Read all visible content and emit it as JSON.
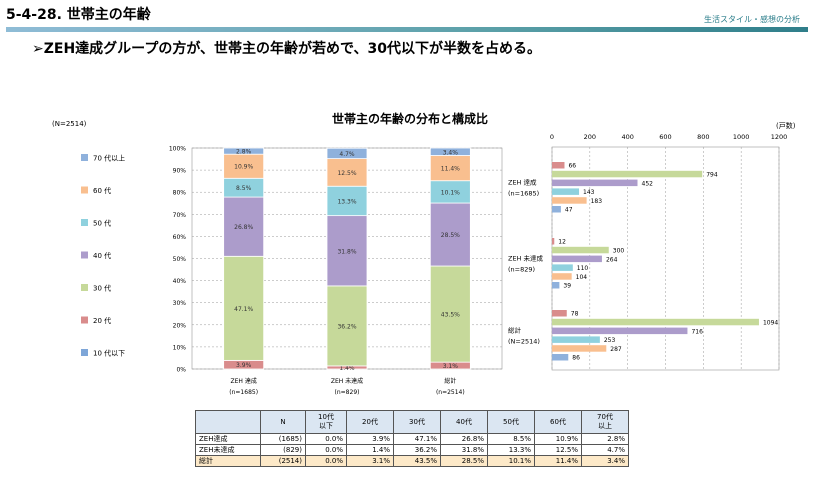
{
  "header": {
    "section": "5-4-28. 世帯主の年齢",
    "category": "生活スタイル・感想の分析"
  },
  "headline": "➢ZEH達成グループの方が、世帯主の年齢が若めで、30代以下が半数を占める。",
  "chart_title": "世帯主の年齢の分布と構成比",
  "n_label": "(N=2514)",
  "unit_label": "(戸数)",
  "colors": {
    "10代以下": "#7ea6d8",
    "20代": "#d98c8c",
    "30代": "#c6d99a",
    "40代": "#ac9ccb",
    "50代": "#8fd1de",
    "60代": "#f9bf8f",
    "70代以上": "#8fb1dc"
  },
  "chart_data": [
    {
      "type": "bar",
      "stacked": true,
      "orientation": "vertical",
      "categories": [
        "ZEH 達成",
        "ZEH 未達成",
        "総計"
      ],
      "category_sublabels": [
        "(n=1685)",
        "(n=829)",
        "(n=2514)"
      ],
      "ylim": [
        0,
        100
      ],
      "yticks": [
        "0%",
        "10%",
        "20%",
        "30%",
        "40%",
        "50%",
        "60%",
        "70%",
        "80%",
        "90%",
        "100%"
      ],
      "legend": [
        "70 代以上",
        "60 代",
        "50 代",
        "40 代",
        "30 代",
        "20 代",
        "10 代以下"
      ],
      "series": [
        {
          "name": "10 代以下",
          "key": "10代以下",
          "values": [
            0.0,
            0.0,
            0.0
          ],
          "labels": [
            "",
            "",
            ""
          ]
        },
        {
          "name": "20 代",
          "key": "20代",
          "values": [
            3.9,
            1.4,
            3.1
          ],
          "labels": [
            "3.9%",
            "1.4%",
            "3.1%"
          ]
        },
        {
          "name": "30 代",
          "key": "30代",
          "values": [
            47.1,
            36.2,
            43.5
          ],
          "labels": [
            "47.1%",
            "36.2%",
            "43.5%"
          ]
        },
        {
          "name": "40 代",
          "key": "40代",
          "values": [
            26.8,
            31.8,
            28.5
          ],
          "labels": [
            "26.8%",
            "31.8%",
            "28.5%"
          ]
        },
        {
          "name": "50 代",
          "key": "50代",
          "values": [
            8.5,
            13.3,
            10.1
          ],
          "labels": [
            "8.5%",
            "13.3%",
            "10.1%"
          ]
        },
        {
          "name": "60 代",
          "key": "60代",
          "values": [
            10.9,
            12.5,
            11.4
          ],
          "labels": [
            "10.9%",
            "12.5%",
            "11.4%"
          ]
        },
        {
          "name": "70 代以上",
          "key": "70代以上",
          "values": [
            2.8,
            4.7,
            3.4
          ],
          "labels": [
            "2.8%",
            "4.7%",
            "3.4%"
          ]
        }
      ]
    },
    {
      "type": "bar",
      "orientation": "horizontal",
      "xlim": [
        0,
        1200
      ],
      "xticks": [
        "0",
        "200",
        "400",
        "600",
        "800",
        "1000",
        "1200"
      ],
      "groups": [
        {
          "label": "ZEH 達成",
          "sublabel": "(n=1685)",
          "values": [
            66,
            794,
            452,
            143,
            183,
            47
          ],
          "labels": [
            "66",
            "794",
            "452",
            "143",
            "183",
            "47"
          ]
        },
        {
          "label": "ZEH 未達成",
          "sublabel": "(n=829)",
          "values": [
            12,
            300,
            264,
            110,
            104,
            39
          ],
          "labels": [
            "12",
            "300",
            "264",
            "110",
            "104",
            "39"
          ]
        },
        {
          "label": "総計",
          "sublabel": "(N=2514)",
          "values": [
            78,
            1094,
            716,
            253,
            287,
            86
          ],
          "labels": [
            "78",
            "1094",
            "716",
            "253",
            "287",
            "86"
          ]
        }
      ],
      "series_order": [
        "20代",
        "30代",
        "40代",
        "50代",
        "60代",
        "70代以上"
      ]
    }
  ],
  "table": {
    "headers": [
      "",
      "N",
      "10代\n以下",
      "20代",
      "30代",
      "40代",
      "50代",
      "60代",
      "70代\n以上"
    ],
    "rows": [
      [
        "ZEH達成",
        "(1685)",
        "0.0%",
        "3.9%",
        "47.1%",
        "26.8%",
        "8.5%",
        "10.9%",
        "2.8%"
      ],
      [
        "ZEH未達成",
        "(829)",
        "0.0%",
        "1.4%",
        "36.2%",
        "31.8%",
        "13.3%",
        "12.5%",
        "4.7%"
      ],
      [
        "総計",
        "(2514)",
        "0.0%",
        "3.1%",
        "43.5%",
        "28.5%",
        "10.1%",
        "11.4%",
        "3.4%"
      ]
    ]
  }
}
